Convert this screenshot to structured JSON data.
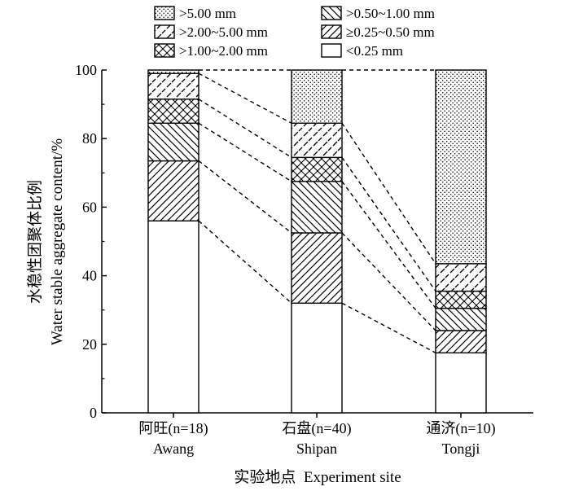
{
  "chart_data": {
    "type": "bar",
    "stacked": true,
    "categories": [
      {
        "cn": "阿旺(n=18)",
        "en": "Awang"
      },
      {
        "cn": "石盘(n=40)",
        "en": "Shipan"
      },
      {
        "cn": "通济(n=10)",
        "en": "Tongji"
      }
    ],
    "series": [
      {
        "name": "<0.25 mm",
        "pattern": "blank",
        "values": [
          56,
          32,
          17.5
        ]
      },
      {
        "name": "≥0.25~0.50 mm",
        "pattern": "diag-up",
        "values": [
          17.5,
          20.5,
          6.5
        ]
      },
      {
        "name": ">0.50~1.00 mm",
        "pattern": "diag-down",
        "values": [
          11,
          15,
          6.5
        ]
      },
      {
        "name": ">1.00~2.00 mm",
        "pattern": "cross",
        "values": [
          7,
          7,
          5
        ]
      },
      {
        "name": ">2.00~5.00 mm",
        "pattern": "diag-up-dashed",
        "values": [
          7.5,
          10,
          8
        ]
      },
      {
        "name": ">5.00 mm",
        "pattern": "dots",
        "values": [
          1,
          15.5,
          56.5
        ]
      }
    ],
    "legend_order": [
      ">5.00 mm",
      ">0.50~1.00 mm",
      ">2.00~5.00 mm",
      "≥0.25~0.50 mm",
      ">1.00~2.00 mm",
      "<0.25 mm"
    ],
    "ylabel_cn": "水稳性团聚体比例",
    "ylabel_en": "Water stable aggregate content/%",
    "xlabel": "实验地点  Experiment site",
    "ylim": [
      0,
      100
    ],
    "yticks": [
      "0",
      "20",
      "40",
      "60",
      "80",
      "100"
    ],
    "connectors": "dashed",
    "legend_position": "top"
  }
}
